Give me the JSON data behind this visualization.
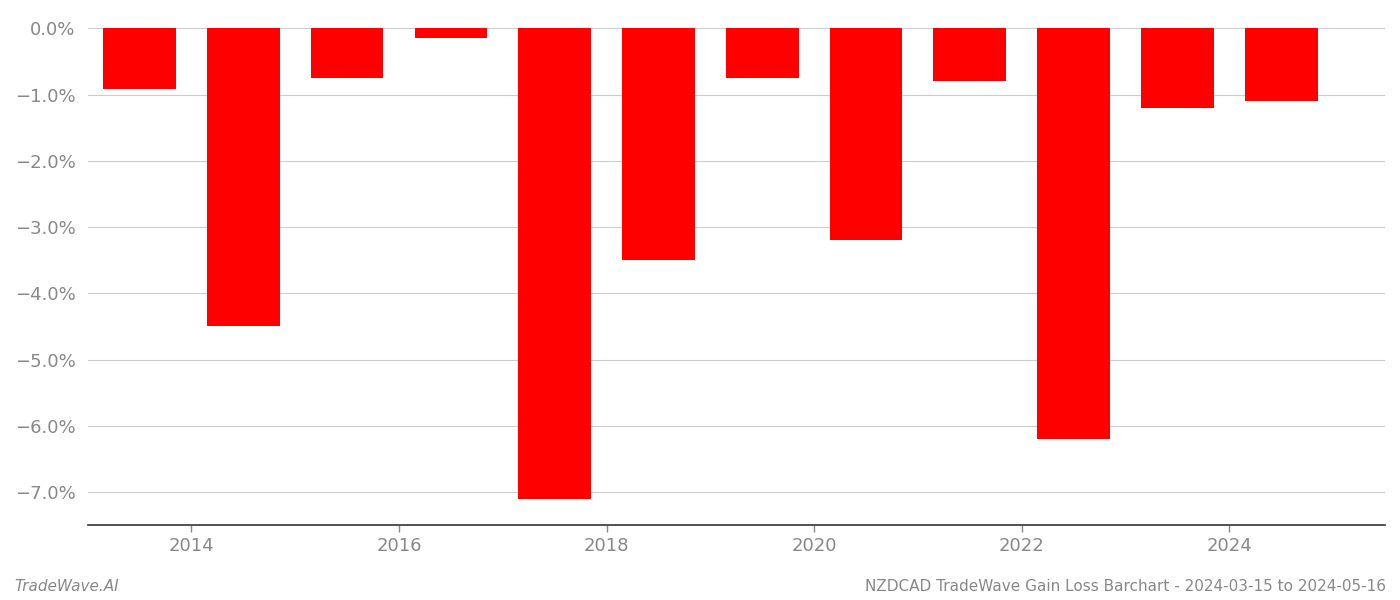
{
  "years": [
    2013.5,
    2014.5,
    2015.5,
    2016.5,
    2017.5,
    2018.5,
    2019.5,
    2020.5,
    2021.5,
    2022.5,
    2023.5,
    2024.5
  ],
  "values": [
    -0.0092,
    -0.045,
    -0.0075,
    -0.0015,
    -0.071,
    -0.035,
    -0.0075,
    -0.032,
    -0.008,
    -0.062,
    -0.012,
    -0.011
  ],
  "bar_color": "#ff0000",
  "background_color": "#ffffff",
  "ylim": [
    -0.075,
    0.002
  ],
  "yticks": [
    0.0,
    -0.01,
    -0.02,
    -0.03,
    -0.04,
    -0.05,
    -0.06,
    -0.07
  ],
  "xlabel_years": [
    2014,
    2016,
    2018,
    2020,
    2022,
    2024
  ],
  "xlim": [
    2013,
    2025.5
  ],
  "footer_left": "TradeWave.AI",
  "footer_right": "NZDCAD TradeWave Gain Loss Barchart - 2024-03-15 to 2024-05-16",
  "grid_color": "#cccccc",
  "tick_color": "#888888",
  "spine_color": "#333333",
  "bar_width": 0.7,
  "tick_labelsize": 13,
  "footer_fontsize": 11
}
